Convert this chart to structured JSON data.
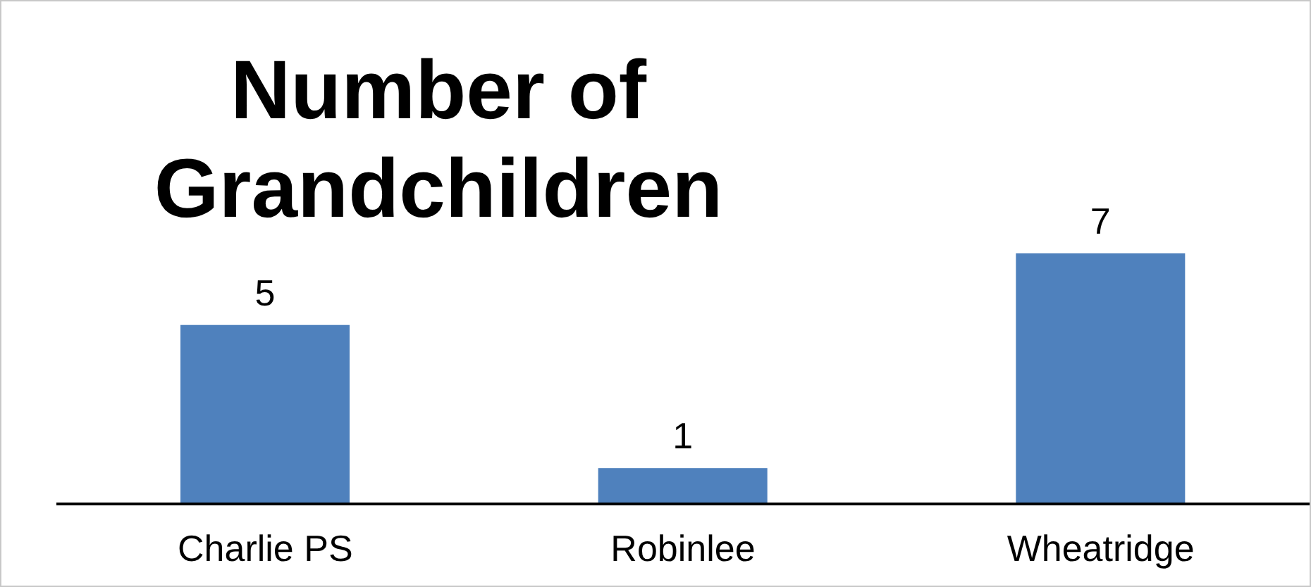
{
  "chart_data": {
    "type": "bar",
    "title": "Number of Grandchildren",
    "categories": [
      "Charlie PS",
      "Robinlee",
      "Wheatridge"
    ],
    "values": [
      5,
      1,
      7
    ],
    "color": "#4f81bd",
    "data_labels": true,
    "tick_labels": "x",
    "grid": false,
    "legend": false
  }
}
